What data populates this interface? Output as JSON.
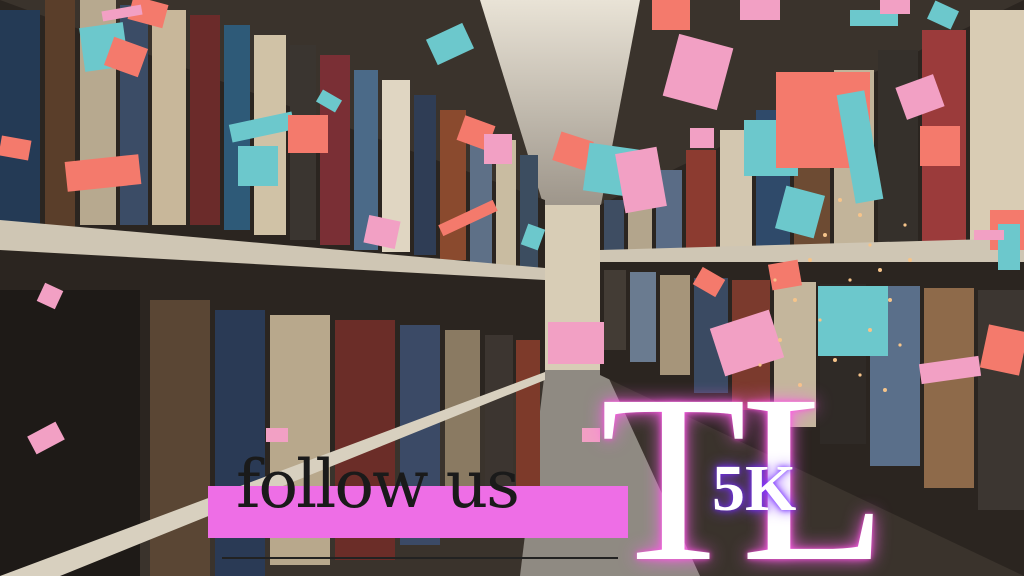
{
  "overlay": {
    "follow_label": "follow us",
    "brand_letters": "TL",
    "milestone": "5K"
  },
  "scene": {
    "subject": "library-aisle-with-confetti"
  },
  "colors": {
    "banner_pink": "#ee6ee6",
    "confetti_pink": "#f2a0c4",
    "confetti_coral": "#f47a6c",
    "confetti_teal": "#6cc8cc",
    "glow_magenta": "#ff66ee",
    "glow_purple": "#8a3cff"
  }
}
